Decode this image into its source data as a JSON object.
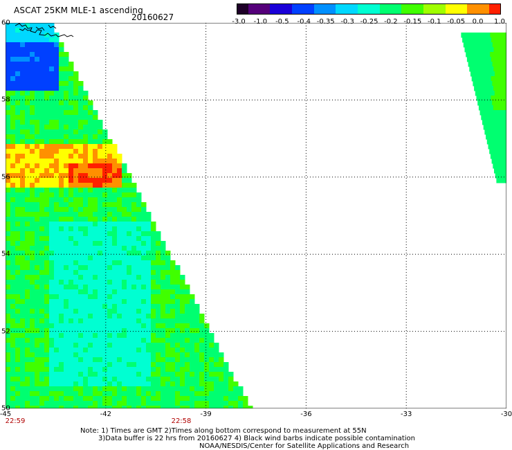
{
  "header": {
    "title": "ASCAT 25KM MLE-1 ascending",
    "date": "20160627"
  },
  "colorbar": {
    "labels": [
      "-3.0",
      "-1.0",
      "-0.5",
      "-0.4",
      "-0.35",
      "-0.3",
      "-0.25",
      "-0.2",
      "-0.15",
      "-0.1",
      "-0.05",
      "0.0",
      "1.0"
    ],
    "colors": [
      "#1e0028",
      "#55007a",
      "#1a00d8",
      "#0040ff",
      "#0090ff",
      "#00d8ff",
      "#00ffd2",
      "#00ff70",
      "#40ff00",
      "#a0ff00",
      "#ffff00",
      "#ff9000",
      "#ff2000"
    ]
  },
  "map": {
    "lon_ticks": [
      "-45",
      "-42",
      "-39",
      "-36",
      "-33",
      "-30"
    ],
    "lat_ticks": [
      "60",
      "58",
      "56",
      "54",
      "52",
      "50"
    ],
    "time_labels": [
      "22:59",
      "22:58"
    ]
  },
  "footer": {
    "line1": "Note: 1) Times are GMT 2)Times along bottom correspond to measurement at 55N",
    "line2": "3)Data buffer is 22 hrs from 20160627 4) Black wind barbs indicate possible contamination",
    "line3": "NOAA/NESDIS/Center for Satellite Applications and Research"
  }
}
